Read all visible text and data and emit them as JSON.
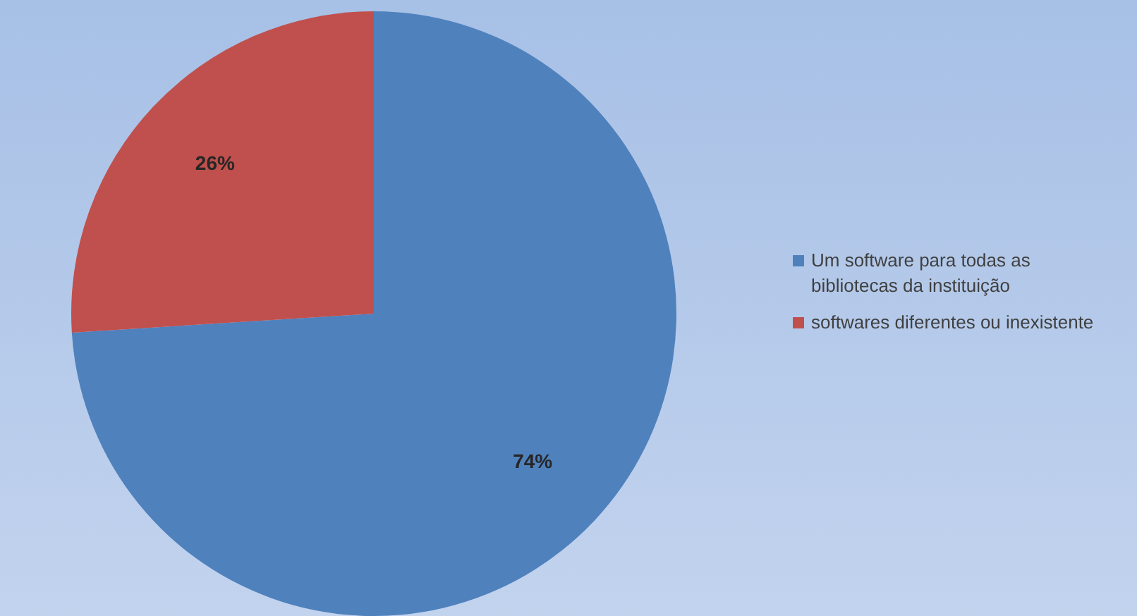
{
  "chart_data": {
    "type": "pie",
    "categories": [
      "Um software para todas as bibliotecas da instituição",
      "softwares diferentes ou inexistente"
    ],
    "values": [
      74,
      26
    ],
    "colors": [
      "#4f81bd",
      "#c0504d"
    ],
    "legend": "right",
    "value_labels": [
      "74%",
      "26%"
    ]
  }
}
